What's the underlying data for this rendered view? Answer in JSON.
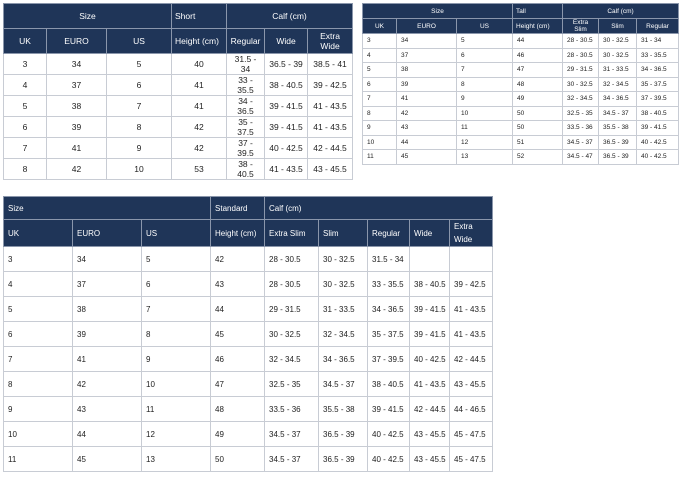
{
  "tables": [
    {
      "size_label": "Size",
      "height_group": "Short",
      "calf_label": "Calf (cm)",
      "columns": [
        "UK",
        "EURO",
        "US",
        "Height (cm)",
        "Regular",
        "Wide",
        "Extra Wide"
      ],
      "rows": [
        [
          "3",
          "34",
          "5",
          "40",
          "31.5 - 34",
          "36.5 - 39",
          "38.5 - 41"
        ],
        [
          "4",
          "37",
          "6",
          "41",
          "33 - 35.5",
          "38 - 40.5",
          "39 - 42.5"
        ],
        [
          "5",
          "38",
          "7",
          "41",
          "34 - 36.5",
          "39 - 41.5",
          "41 - 43.5"
        ],
        [
          "6",
          "39",
          "8",
          "42",
          "35 - 37.5",
          "39 - 41.5",
          "41 - 43.5"
        ],
        [
          "7",
          "41",
          "9",
          "42",
          "37 - 39.5",
          "40 - 42.5",
          "42 - 44.5"
        ],
        [
          "8",
          "42",
          "10",
          "53",
          "38 - 40.5",
          "41 - 43.5",
          "43 - 45.5"
        ]
      ]
    },
    {
      "size_label": "Size",
      "height_group": "Tall",
      "calf_label": "Calf (cm)",
      "columns": [
        "UK",
        "EURO",
        "US",
        "Height (cm)",
        "Extra Slim",
        "Slim",
        "Regular"
      ],
      "rows": [
        [
          "3",
          "34",
          "5",
          "44",
          "28 - 30.5",
          "30 - 32.5",
          "31 - 34"
        ],
        [
          "4",
          "37",
          "6",
          "46",
          "28 - 30.5",
          "30 - 32.5",
          "33 - 35.5"
        ],
        [
          "5",
          "38",
          "7",
          "47",
          "29 - 31.5",
          "31 - 33.5",
          "34 - 36.5"
        ],
        [
          "6",
          "39",
          "8",
          "48",
          "30 - 32.5",
          "32 - 34.5",
          "35 - 37.5"
        ],
        [
          "7",
          "41",
          "9",
          "49",
          "32 - 34.5",
          "34 - 36.5",
          "37 - 39.5"
        ],
        [
          "8",
          "42",
          "10",
          "50",
          "32.5 - 35",
          "34.5 - 37",
          "38 - 40.5"
        ],
        [
          "9",
          "43",
          "11",
          "50",
          "33.5 - 36",
          "35.5 - 38",
          "39 - 41.5"
        ],
        [
          "10",
          "44",
          "12",
          "51",
          "34.5 - 37",
          "36.5 - 39",
          "40 - 42.5"
        ],
        [
          "11",
          "45",
          "13",
          "52",
          "34.5 - 47",
          "36.5 - 39",
          "40 - 42.5"
        ]
      ]
    },
    {
      "size_label": "Size",
      "height_group": "Standard",
      "calf_label": "Calf (cm)",
      "columns": [
        "UK",
        "EURO",
        "US",
        "Height (cm)",
        "Extra Slim",
        "Slim",
        "Regular",
        "Wide",
        "Extra Wide"
      ],
      "rows": [
        [
          "3",
          "34",
          "5",
          "42",
          "28 - 30.5",
          "30 - 32.5",
          "31.5 - 34",
          null,
          null
        ],
        [
          "4",
          "37",
          "6",
          "43",
          "28 - 30.5",
          "30 - 32.5",
          "33 - 35.5",
          "38 - 40.5",
          "39 - 42.5"
        ],
        [
          "5",
          "38",
          "7",
          "44",
          "29 - 31.5",
          "31 - 33.5",
          "34 - 36.5",
          "39 - 41.5",
          "41 - 43.5"
        ],
        [
          "6",
          "39",
          "8",
          "45",
          "30 - 32.5",
          "32 - 34.5",
          "35 - 37.5",
          "39 - 41.5",
          "41 - 43.5"
        ],
        [
          "7",
          "41",
          "9",
          "46",
          "32 - 34.5",
          "34 - 36.5",
          "37 - 39.5",
          "40 - 42.5",
          "42 - 44.5"
        ],
        [
          "8",
          "42",
          "10",
          "47",
          "32.5 - 35",
          "34.5 - 37",
          "38 - 40.5",
          "41 - 43.5",
          "43 - 45.5"
        ],
        [
          "9",
          "43",
          "11",
          "48",
          "33.5 - 36",
          "35.5 - 38",
          "39 - 41.5",
          "42 - 44.5",
          "44 - 46.5"
        ],
        [
          "10",
          "44",
          "12",
          "49",
          "34.5 - 37",
          "36.5 - 39",
          "40 - 42.5",
          "43 - 45.5",
          "45 - 47.5"
        ],
        [
          "11",
          "45",
          "13",
          "50",
          "34.5 - 37",
          "36.5 - 39",
          "40 - 42.5",
          "43 - 45.5",
          "45 - 47.5"
        ]
      ]
    }
  ]
}
